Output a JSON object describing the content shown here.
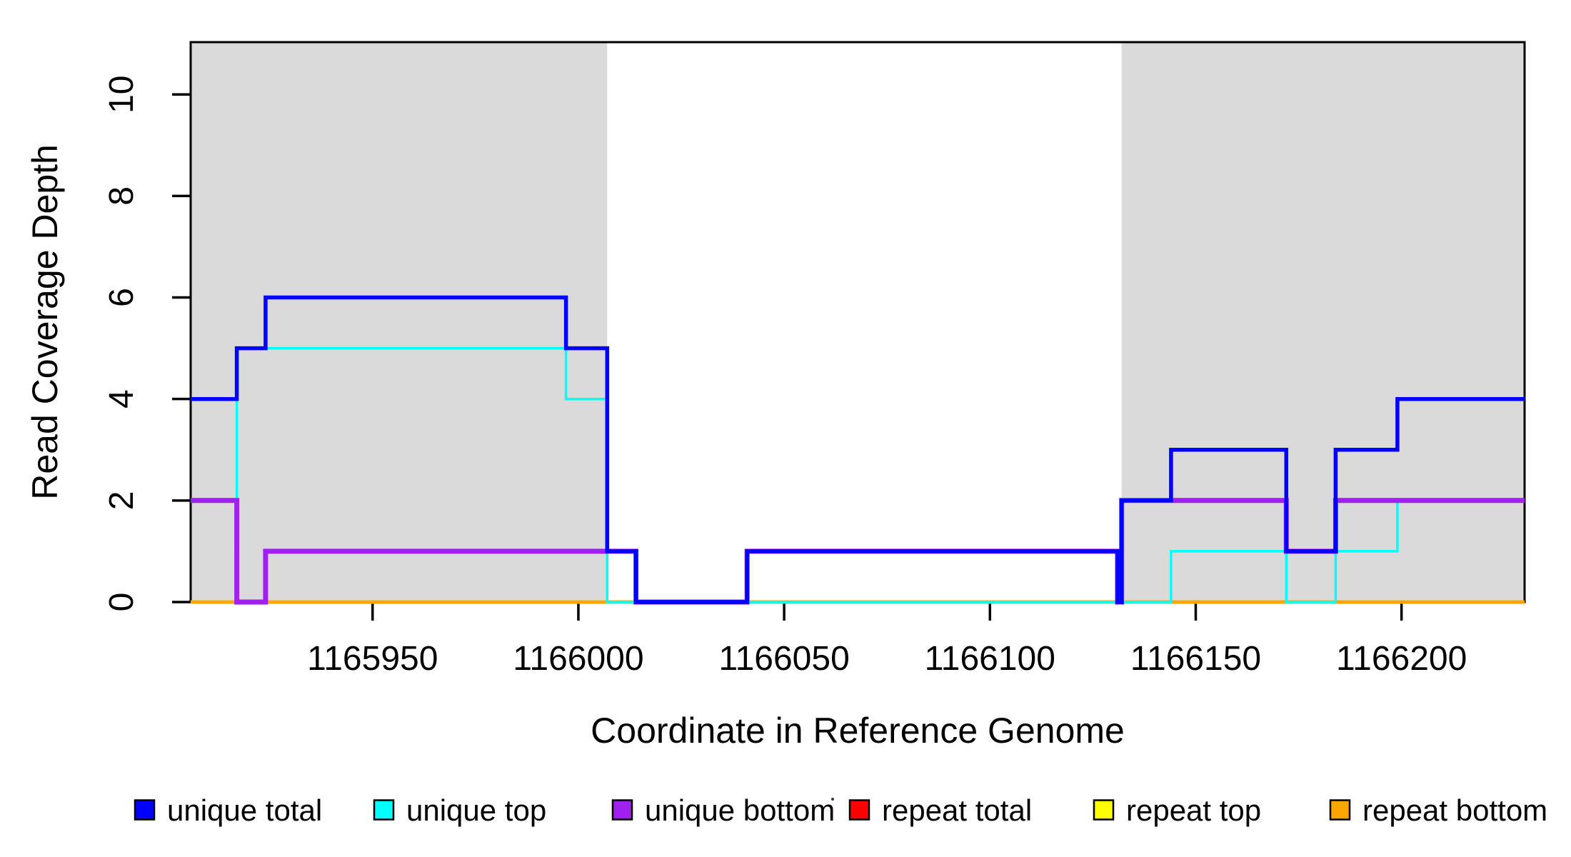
{
  "chart_data": {
    "type": "line",
    "subtype": "step-function-coverage",
    "title": "",
    "xlabel": "Coordinate in Reference Genome",
    "ylabel": "Read Coverage Depth",
    "xlim": [
      1165905.8,
      1166229.9
    ],
    "ylim": [
      0,
      11.03
    ],
    "grid": false,
    "x_ticks": [
      1165950,
      1166000,
      1166050,
      1166100,
      1166150,
      1166200
    ],
    "y_ticks": [
      0,
      2,
      4,
      6,
      8,
      10
    ],
    "shaded_regions": [
      {
        "x0": 1165905.8,
        "x1": 1166007,
        "color": "#DADADA"
      },
      {
        "x0": 1166132,
        "x1": 1166229.9,
        "color": "#DADADA"
      }
    ],
    "series": [
      {
        "name": "repeat total",
        "color": "#FF0000",
        "width": 3.5,
        "steps": [
          [
            1165905.8,
            0
          ]
        ]
      },
      {
        "name": "repeat top",
        "color": "#FFFF00",
        "width": 3.5,
        "steps": [
          [
            1165905.8,
            0
          ]
        ]
      },
      {
        "name": "repeat bottom",
        "color": "#FFA500",
        "width": 5,
        "steps": [
          [
            1165905.8,
            0
          ]
        ]
      },
      {
        "name": "unique top",
        "color": "#00FFFF",
        "width": 3.5,
        "steps": [
          [
            1165905.8,
            2
          ],
          [
            1165917,
            5
          ],
          [
            1165997,
            4
          ],
          [
            1166007,
            0
          ],
          [
            1166144,
            1
          ],
          [
            1166172,
            0
          ],
          [
            1166184,
            1
          ],
          [
            1166199,
            2
          ]
        ]
      },
      {
        "name": "unique bottom",
        "color": "#A020F0",
        "width": 7,
        "steps": [
          [
            1165905.8,
            2
          ],
          [
            1165917,
            0
          ],
          [
            1165924,
            1
          ],
          [
            1166014,
            0
          ],
          [
            1166041,
            1
          ],
          [
            1166131,
            0
          ],
          [
            1166132,
            2
          ],
          [
            1166172,
            1
          ],
          [
            1166184,
            2
          ]
        ]
      },
      {
        "name": "unique total",
        "color": "#0000FF",
        "width": 5.5,
        "steps": [
          [
            1165905.8,
            4
          ],
          [
            1165917,
            5
          ],
          [
            1165924,
            6
          ],
          [
            1165997,
            5
          ],
          [
            1166007,
            1
          ],
          [
            1166014,
            0
          ],
          [
            1166041,
            1
          ],
          [
            1166131,
            0
          ],
          [
            1166132,
            2
          ],
          [
            1166144,
            3
          ],
          [
            1166172,
            1
          ],
          [
            1166184,
            3
          ],
          [
            1166199,
            4
          ]
        ]
      }
    ]
  },
  "legend": {
    "items": [
      {
        "label": "unique total",
        "color": "#0000FF"
      },
      {
        "label": "unique top",
        "color": "#00FFFF"
      },
      {
        "label": "unique bottom",
        "color": "#A020F0"
      },
      {
        "label": "repeat total",
        "color": "#FF0000"
      },
      {
        "label": "repeat top",
        "color": "#FFFF00"
      },
      {
        "label": "repeat bottom",
        "color": "#FFA500"
      }
    ]
  },
  "colors": {
    "axis": "#000000",
    "background": "#FFFFFF",
    "shading": "#DADADA"
  }
}
